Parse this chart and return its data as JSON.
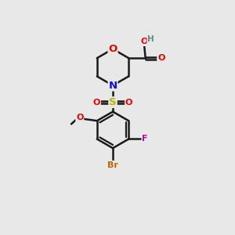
{
  "background_color": "#e8e8e8",
  "figsize": [
    3.0,
    3.0
  ],
  "dpi": 100,
  "atom_colors": {
    "C": "#1a1a1a",
    "H": "#5f8a8b",
    "O": "#e50000",
    "N": "#1010cc",
    "S": "#b8b800",
    "F": "#bb00bb",
    "Br": "#bb6600"
  },
  "bond_color": "#1a1a1a",
  "bond_width": 1.8,
  "font_size_atoms": 9.5,
  "font_size_small": 8.0
}
